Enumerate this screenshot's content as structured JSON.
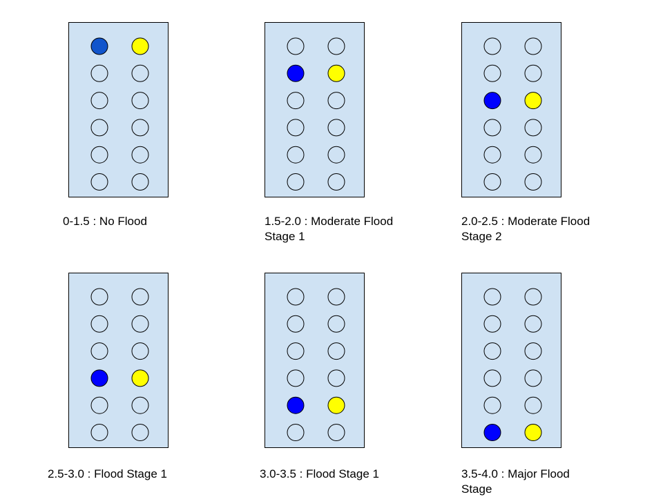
{
  "colors": {
    "panel_fill": "#cfe2f3",
    "outline": "#000000",
    "blue_first": "#1155cc",
    "blue": "#0000ff",
    "yellow": "#ffff00"
  },
  "rows_per_panel": 6,
  "columns_per_panel": 2,
  "panels": [
    {
      "label_line1": "0-1.5 : No Flood",
      "label_line2": "",
      "lit_row": 1,
      "left_color": "#1155cc",
      "right_color": "#ffff00"
    },
    {
      "label_line1": "1.5-2.0 : Moderate Flood",
      "label_line2": "Stage 1",
      "lit_row": 2,
      "left_color": "#0000ff",
      "right_color": "#ffff00"
    },
    {
      "label_line1": "2.0-2.5 : Moderate Flood",
      "label_line2": "Stage 2",
      "lit_row": 3,
      "left_color": "#0000ff",
      "right_color": "#ffff00"
    },
    {
      "label_line1": "2.5-3.0 : Flood Stage 1",
      "label_line2": "",
      "lit_row": 4,
      "left_color": "#0000ff",
      "right_color": "#ffff00"
    },
    {
      "label_line1": "3.0-3.5 : Flood Stage 1",
      "label_line2": "",
      "lit_row": 5,
      "left_color": "#0000ff",
      "right_color": "#ffff00"
    },
    {
      "label_line1": "3.5-4.0 : Major Flood",
      "label_line2": "Stage",
      "lit_row": 6,
      "left_color": "#0000ff",
      "right_color": "#ffff00"
    }
  ]
}
